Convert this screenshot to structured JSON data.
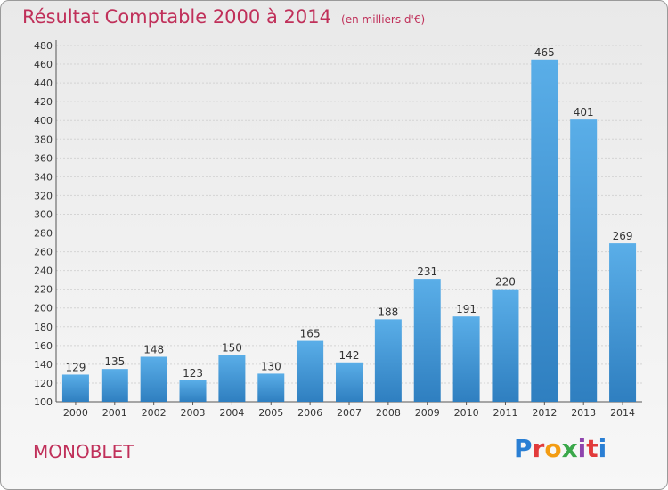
{
  "header": {
    "title": "Résultat Comptable 2000 à 2014",
    "subtitle": "(en milliers d'€)"
  },
  "footer": {
    "commune": "MONOBLET",
    "logo_letters": [
      "P",
      "r",
      "o",
      "x",
      "i",
      "t",
      "i"
    ],
    "logo_colors": [
      "#2a7fd4",
      "#e23b3b",
      "#f39c12",
      "#3aa84a",
      "#8e44ad",
      "#e23b3b",
      "#2a7fd4"
    ]
  },
  "chart_data": {
    "type": "bar",
    "categories": [
      "2000",
      "2001",
      "2002",
      "2003",
      "2004",
      "2005",
      "2006",
      "2007",
      "2008",
      "2009",
      "2010",
      "2011",
      "2012",
      "2013",
      "2014"
    ],
    "values": [
      129,
      135,
      148,
      123,
      150,
      130,
      165,
      142,
      188,
      231,
      191,
      220,
      465,
      401,
      269
    ],
    "ylim": [
      100,
      480
    ],
    "yticks": [
      100,
      120,
      140,
      160,
      180,
      200,
      220,
      240,
      260,
      280,
      300,
      320,
      340,
      360,
      380,
      400,
      420,
      440,
      460,
      480
    ],
    "grid": true,
    "bar_color_top": "#5aaee8",
    "bar_color_bottom": "#2f7fc0"
  }
}
